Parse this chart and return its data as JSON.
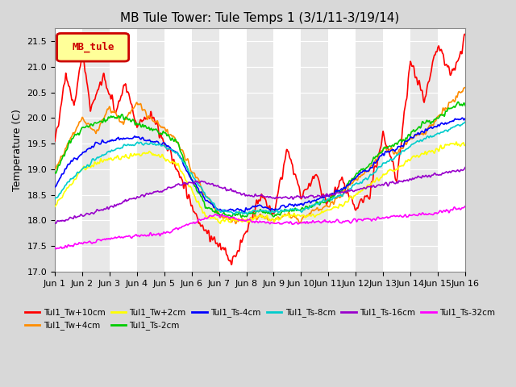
{
  "title": "MB Tule Tower: Tule Temps 1 (3/1/11-3/19/14)",
  "ylabel": "Temperature (C)",
  "ylim": [
    17.0,
    21.75
  ],
  "yticks": [
    17.0,
    17.5,
    18.0,
    18.5,
    19.0,
    19.5,
    20.0,
    20.5,
    21.0,
    21.5
  ],
  "xlim": [
    0,
    15
  ],
  "xtick_labels": [
    "Jun 1",
    "Jun 2",
    "Jun 3",
    "Jun 4",
    "Jun 5",
    "Jun 6",
    "Jun 7",
    "Jun 8",
    "Jun 9",
    "Jun 10",
    "Jun 11",
    "Jun 12",
    "Jun 13",
    "Jun 14",
    "Jun 15",
    "Jun 16"
  ],
  "legend_label": "MB_tule",
  "legend_color": "#cc0000",
  "legend_bg": "#ffff99",
  "title_fontsize": 11,
  "axis_fontsize": 9,
  "tick_fontsize": 8,
  "series_colors": {
    "Tul1_Tw+10cm": "#ff0000",
    "Tul1_Tw+4cm": "#ff8c00",
    "Tul1_Tw+2cm": "#ffff00",
    "Tul1_Ts-2cm": "#00cc00",
    "Tul1_Ts-4cm": "#0000ff",
    "Tul1_Ts-8cm": "#00cccc",
    "Tul1_Ts-16cm": "#9900cc",
    "Tul1_Ts-32cm": "#ff00ff"
  },
  "legend_order": [
    "Tul1_Tw+10cm",
    "Tul1_Tw+4cm",
    "Tul1_Tw+2cm",
    "Tul1_Ts-2cm",
    "Tul1_Ts-4cm",
    "Tul1_Ts-8cm",
    "Tul1_Ts-16cm",
    "Tul1_Ts-32cm"
  ]
}
